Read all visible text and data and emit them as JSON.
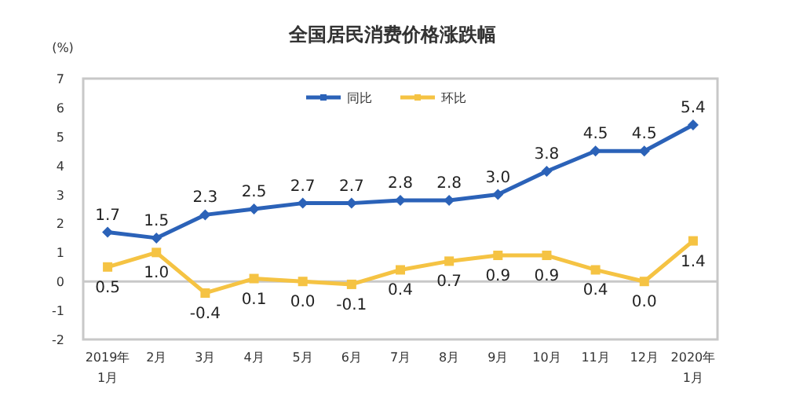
{
  "chart_data": {
    "type": "line",
    "title": "全国居民消费价格涨跌幅",
    "ylabel": "(%)",
    "categories": [
      "2019年\n1月",
      "2月",
      "3月",
      "4月",
      "5月",
      "6月",
      "7月",
      "8月",
      "9月",
      "10月",
      "11月",
      "12月",
      "2020年\n1月"
    ],
    "series": [
      {
        "name": "同比",
        "color": "#2b62b8",
        "marker": "diamond",
        "values": [
          1.7,
          1.5,
          2.3,
          2.5,
          2.7,
          2.7,
          2.8,
          2.8,
          3.0,
          3.8,
          4.5,
          4.5,
          5.4
        ],
        "value_labels": [
          "1.7",
          "1.5",
          "2.3",
          "2.5",
          "2.7",
          "2.7",
          "2.8",
          "2.8",
          "3.0",
          "3.8",
          "4.5",
          "4.5",
          "5.4"
        ]
      },
      {
        "name": "环比",
        "color": "#f5c343",
        "marker": "square",
        "values": [
          0.5,
          1.0,
          -0.4,
          0.1,
          0.0,
          -0.1,
          0.4,
          0.7,
          0.9,
          0.9,
          0.4,
          0.0,
          1.4
        ],
        "value_labels": [
          "0.5",
          "1.0",
          "-0.4",
          "0.1",
          "0.0",
          "-0.1",
          "0.4",
          "0.7",
          "0.9",
          "0.9",
          "0.4",
          "0.0",
          "1.4"
        ]
      }
    ],
    "ylim": [
      -2,
      7
    ],
    "yticks": [
      -2,
      -1,
      0,
      1,
      2,
      3,
      4,
      5,
      6,
      7
    ],
    "ref_lines": [
      {
        "axis": "y",
        "value": 0,
        "color": "#c8c8c8"
      }
    ],
    "legend": "top"
  }
}
